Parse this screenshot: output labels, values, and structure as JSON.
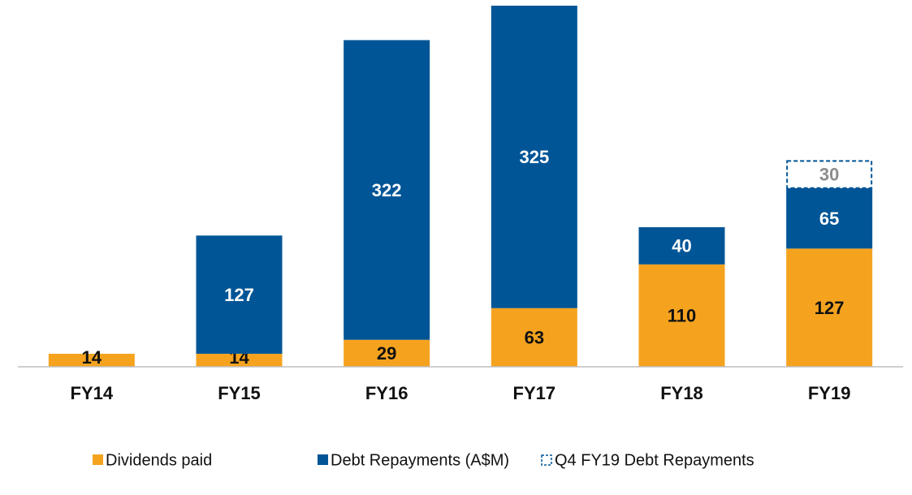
{
  "chart_data": {
    "type": "stacked_bar",
    "categories": [
      "FY14",
      "FY15",
      "FY16",
      "FY17",
      "FY18",
      "FY19"
    ],
    "series": [
      {
        "name": "Dividends paid",
        "color": "#f5a31f",
        "label_color": "#111111",
        "values": [
          14,
          14,
          29,
          63,
          110,
          127
        ]
      },
      {
        "name": "Debt Repayments (A$M)",
        "color": "#005596",
        "label_color": "#ffffff",
        "values": [
          null,
          127,
          322,
          325,
          40,
          65
        ]
      },
      {
        "name": "Q4 FY19 Debt Repayments",
        "color": "#005596",
        "label_color": "#8c8c8c",
        "dashed": true,
        "values": [
          null,
          null,
          null,
          null,
          null,
          30
        ]
      }
    ],
    "legend": "bottom"
  }
}
